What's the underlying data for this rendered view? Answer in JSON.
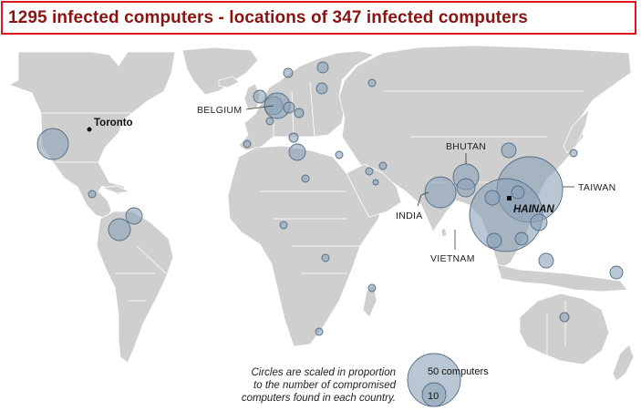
{
  "title": "1295 infected computers - locations of 347 infected computers",
  "colors": {
    "title_border": "#e2141c",
    "title_text": "#8a1412",
    "land": "#cfcfcf",
    "bubble_fill": "#8aa2b8",
    "bubble_stroke": "#536d86"
  },
  "map": {
    "places": {
      "toronto": "Toronto",
      "belgium": "BELGIUM",
      "bhutan": "BHUTAN",
      "india": "INDIA",
      "vietnam": "VIETNAM",
      "taiwan": "TAIWAN",
      "hainan": "HAINAN"
    }
  },
  "note": {
    "line1": "Circles are scaled in proportion",
    "line2": "to the number of compromised",
    "line3": "computers found in each country."
  },
  "legend": {
    "large_label": "50 computers",
    "small_label": "10"
  }
}
